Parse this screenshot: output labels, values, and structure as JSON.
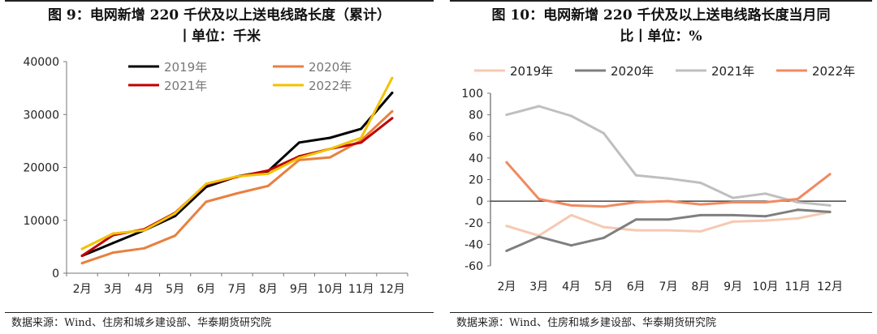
{
  "chart_data": [
    {
      "type": "line",
      "title": "图 9：电网新增 220 千伏及以上送电线路长度（累计）",
      "subtitle": "丨单位：千米",
      "source": "数据来源：Wind、住房和城乡建设部、华泰期货研究院",
      "categories": [
        "2月",
        "3月",
        "4月",
        "5月",
        "6月",
        "7月",
        "8月",
        "9月",
        "10月",
        "11月",
        "12月"
      ],
      "ylim": [
        0,
        40000
      ],
      "yticks": [
        0,
        10000,
        20000,
        30000,
        40000
      ],
      "grid": false,
      "legend": "top",
      "series": [
        {
          "name": "2019年",
          "color": "#000000",
          "values": [
            3300,
            5700,
            8100,
            10800,
            16300,
            18300,
            19300,
            24700,
            25600,
            27300,
            34100
          ]
        },
        {
          "name": "2020年",
          "color": "#e8803f",
          "values": [
            1900,
            3900,
            4700,
            7100,
            13500,
            15100,
            16500,
            21400,
            21900,
            25100,
            30600
          ]
        },
        {
          "name": "2021年",
          "color": "#c00000",
          "values": [
            3300,
            7200,
            8300,
            11400,
            16800,
            18200,
            19400,
            22100,
            23500,
            24700,
            29300
          ]
        },
        {
          "name": "2022年",
          "color": "#f2c200",
          "values": [
            4600,
            7500,
            8100,
            11300,
            16900,
            18300,
            18800,
            21800,
            23500,
            25600,
            36900
          ]
        }
      ]
    },
    {
      "type": "line",
      "title": "图 10：电网新增 220 千伏及以上送电线路长度当月同",
      "subtitle": "比丨单位：%",
      "source": "数据来源：Wind、住房和城乡建设部、华泰期货研究院",
      "categories": [
        "2月",
        "3月",
        "4月",
        "5月",
        "6月",
        "7月",
        "8月",
        "9月",
        "10月",
        "11月",
        "12月"
      ],
      "ylim": [
        -60,
        100
      ],
      "yticks": [
        -60,
        -40,
        -20,
        0,
        20,
        40,
        60,
        80,
        100
      ],
      "grid": false,
      "legend": "top",
      "series": [
        {
          "name": "2019年",
          "color": "#f6c9b3",
          "values": [
            -23,
            -32,
            -13,
            -24,
            -27,
            -27,
            -28,
            -19,
            -18,
            -16,
            -10
          ]
        },
        {
          "name": "2020年",
          "color": "#7f7f7f",
          "values": [
            -46,
            -33,
            -41,
            -34,
            -17,
            -17,
            -13,
            -13,
            -14,
            -8,
            -10
          ]
        },
        {
          "name": "2021年",
          "color": "#bfbfbf",
          "values": [
            80,
            88,
            79,
            63,
            24,
            21,
            17,
            3,
            7,
            -1,
            -4
          ]
        },
        {
          "name": "2022年",
          "color": "#f08a60",
          "values": [
            36,
            2,
            -4,
            -5,
            -1,
            0,
            -3,
            -1,
            -1,
            2,
            25
          ]
        }
      ]
    }
  ]
}
